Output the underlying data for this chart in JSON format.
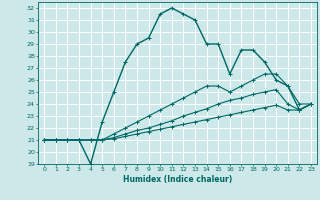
{
  "xlabel": "Humidex (Indice chaleur)",
  "bg_color": "#cce8e8",
  "grid_color": "#ffffff",
  "line_color": "#006666",
  "marker": "+",
  "ylim": [
    19,
    32.5
  ],
  "xlim": [
    -0.5,
    23.5
  ],
  "yticks": [
    19,
    20,
    21,
    22,
    23,
    24,
    25,
    26,
    27,
    28,
    29,
    30,
    31,
    32
  ],
  "xticks": [
    0,
    1,
    2,
    3,
    4,
    5,
    6,
    7,
    8,
    9,
    10,
    11,
    12,
    13,
    14,
    15,
    16,
    17,
    18,
    19,
    20,
    21,
    22,
    23
  ],
  "series": [
    [
      21.0,
      21.0,
      21.0,
      21.0,
      19.0,
      22.5,
      25.0,
      27.5,
      29.0,
      29.5,
      31.5,
      32.0,
      31.5,
      31.0,
      29.0,
      29.0,
      26.5,
      28.5,
      28.5,
      27.5,
      26.0,
      25.5,
      23.5,
      24.0
    ],
    [
      21.0,
      21.0,
      21.0,
      21.0,
      21.0,
      21.0,
      21.5,
      22.0,
      22.5,
      23.0,
      23.5,
      24.0,
      24.5,
      25.0,
      25.5,
      25.5,
      25.0,
      25.5,
      26.0,
      26.5,
      26.5,
      25.5,
      24.0,
      24.0
    ],
    [
      21.0,
      21.0,
      21.0,
      21.0,
      21.0,
      21.0,
      21.2,
      21.5,
      21.8,
      22.0,
      22.3,
      22.6,
      23.0,
      23.3,
      23.6,
      24.0,
      24.3,
      24.5,
      24.8,
      25.0,
      25.2,
      24.0,
      23.5,
      24.0
    ],
    [
      21.0,
      21.0,
      21.0,
      21.0,
      21.0,
      21.0,
      21.1,
      21.3,
      21.5,
      21.7,
      21.9,
      22.1,
      22.3,
      22.5,
      22.7,
      22.9,
      23.1,
      23.3,
      23.5,
      23.7,
      23.9,
      23.5,
      23.5,
      24.0
    ]
  ]
}
